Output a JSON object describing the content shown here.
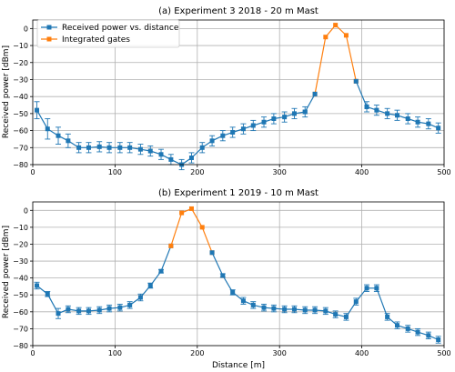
{
  "chart_data": [
    {
      "type": "line",
      "title": "(a) Experiment 3 2018 - 20 m Mast",
      "xlabel": "",
      "ylabel": "Received power [dBm]",
      "xlim": [
        0,
        500
      ],
      "ylim": [
        -80,
        5
      ],
      "xticks": [
        0,
        100,
        200,
        300,
        400,
        500
      ],
      "yticks": [
        0,
        -10,
        -20,
        -30,
        -40,
        -50,
        -60,
        -70,
        -80
      ],
      "grid": true,
      "legend_position": "top-left",
      "series": [
        {
          "name": "Received power vs. distance",
          "color": "#1f77b4",
          "marker": "square",
          "x": [
            5,
            18,
            31,
            43,
            56,
            68,
            81,
            93,
            106,
            118,
            131,
            143,
            156,
            168,
            181,
            193,
            206,
            218,
            231,
            243,
            256,
            268,
            281,
            293,
            306,
            318,
            331
          ],
          "y": [
            -48,
            -59,
            -63,
            -66,
            -70,
            -70,
            -69.5,
            -70,
            -70,
            -70,
            -71,
            -72,
            -74,
            -77,
            -80,
            -76,
            -70,
            -66,
            -63,
            -61,
            -59,
            -57,
            -55,
            -53,
            -52,
            -50,
            -49
          ],
          "err": [
            5,
            6,
            5,
            4,
            3,
            3,
            3,
            3,
            3,
            3,
            3,
            3,
            3,
            3,
            3,
            3,
            3,
            3,
            3,
            3,
            3,
            3,
            3,
            3,
            3,
            3,
            3
          ]
        },
        {
          "name": "Integrated gates",
          "color": "#ff7f0e",
          "marker": "circle",
          "x": [
            343,
            356,
            368,
            381,
            393
          ],
          "y": [
            -38.5,
            -5,
            2,
            -4,
            -31
          ],
          "err": [
            0,
            0,
            0,
            0,
            0
          ]
        },
        {
          "name": "",
          "color": "#1f77b4",
          "marker": "square",
          "x": [
            406,
            418,
            431,
            443,
            456,
            468,
            481,
            493
          ],
          "y": [
            -46,
            -48,
            -50,
            -51,
            -53,
            -55,
            -56,
            -58.5
          ],
          "err": [
            3,
            3,
            3,
            3,
            3,
            3,
            3,
            3
          ]
        },
        {
          "name": "",
          "color": "#1f77b4",
          "marker": "square",
          "x": [
            331,
            343
          ],
          "y": [
            -49,
            -38.5
          ],
          "err": [
            0,
            0
          ]
        },
        {
          "name": "",
          "color": "#1f77b4",
          "marker": "square",
          "x": [
            393,
            406
          ],
          "y": [
            -31,
            -46
          ],
          "err": [
            0,
            0
          ]
        }
      ]
    },
    {
      "type": "line",
      "title": "(b) Experiment 1 2019 - 10 m Mast",
      "xlabel": "Distance [m]",
      "ylabel": "Received power [dBm]",
      "xlim": [
        0,
        500
      ],
      "ylim": [
        -80,
        5
      ],
      "xticks": [
        0,
        100,
        200,
        300,
        400,
        500
      ],
      "yticks": [
        0,
        -10,
        -20,
        -30,
        -40,
        -50,
        -60,
        -70,
        -80
      ],
      "grid": true,
      "series": [
        {
          "name": "Received power vs. distance",
          "color": "#1f77b4",
          "marker": "square",
          "x": [
            5,
            18,
            31,
            43,
            56,
            68,
            81,
            93,
            106,
            118,
            131,
            143,
            156,
            168
          ],
          "y": [
            -44.5,
            -49.5,
            -61,
            -58.5,
            -59.5,
            -59.5,
            -59,
            -58,
            -57.5,
            -56,
            -51.5,
            -44.5,
            -36,
            -21
          ],
          "err": [
            2,
            1.5,
            3,
            2,
            2,
            2,
            2,
            2,
            2,
            2,
            2,
            1.5,
            1,
            0
          ]
        },
        {
          "name": "Integrated gates",
          "color": "#ff7f0e",
          "marker": "circle",
          "x": [
            168,
            181,
            193,
            206,
            218
          ],
          "y": [
            -21,
            -1.5,
            1,
            -10,
            -25
          ],
          "err": [
            0,
            0,
            0,
            0,
            0
          ]
        },
        {
          "name": "",
          "color": "#1f77b4",
          "marker": "square",
          "x": [
            218,
            231,
            243,
            256,
            268,
            281,
            293,
            306,
            318,
            331,
            343,
            356,
            368,
            381,
            393,
            406,
            418,
            431,
            443,
            456,
            468,
            481,
            493
          ],
          "y": [
            -25,
            -38.5,
            -48.5,
            -53.5,
            -56,
            -57.5,
            -58,
            -58.5,
            -58.5,
            -59,
            -59,
            -59.5,
            -61.5,
            -63,
            -54,
            -46,
            -46,
            -63,
            -68,
            -70,
            -72,
            -74,
            -76.5
          ],
          "err": [
            0,
            1,
            1.5,
            2,
            2,
            2,
            2,
            2,
            2,
            2,
            2,
            2,
            2,
            2,
            2,
            2,
            2,
            2,
            2,
            2,
            2,
            2,
            2
          ]
        }
      ]
    }
  ]
}
